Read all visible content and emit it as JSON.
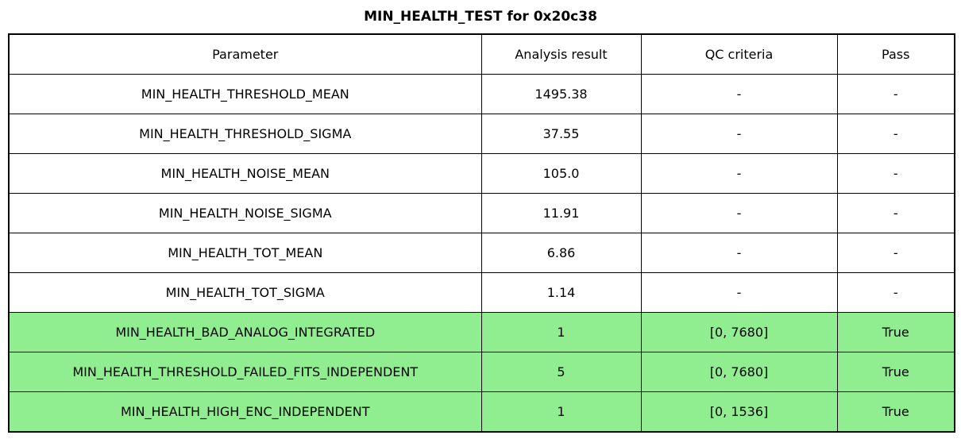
{
  "title": "MIN_HEALTH_TEST for 0x20c38",
  "table": {
    "headers": [
      "Parameter",
      "Analysis result",
      "QC criteria",
      "Pass"
    ],
    "rows": [
      {
        "parameter": "MIN_HEALTH_THRESHOLD_MEAN",
        "result": "1495.38",
        "qc": "-",
        "pass": "-",
        "highlight": false
      },
      {
        "parameter": "MIN_HEALTH_THRESHOLD_SIGMA",
        "result": "37.55",
        "qc": "-",
        "pass": "-",
        "highlight": false
      },
      {
        "parameter": "MIN_HEALTH_NOISE_MEAN",
        "result": "105.0",
        "qc": "-",
        "pass": "-",
        "highlight": false
      },
      {
        "parameter": "MIN_HEALTH_NOISE_SIGMA",
        "result": "11.91",
        "qc": "-",
        "pass": "-",
        "highlight": false
      },
      {
        "parameter": "MIN_HEALTH_TOT_MEAN",
        "result": "6.86",
        "qc": "-",
        "pass": "-",
        "highlight": false
      },
      {
        "parameter": "MIN_HEALTH_TOT_SIGMA",
        "result": "1.14",
        "qc": "-",
        "pass": "-",
        "highlight": false
      },
      {
        "parameter": "MIN_HEALTH_BAD_ANALOG_INTEGRATED",
        "result": "1",
        "qc": "[0, 7680]",
        "pass": "True",
        "highlight": true
      },
      {
        "parameter": "MIN_HEALTH_THRESHOLD_FAILED_FITS_INDEPENDENT",
        "result": "5",
        "qc": "[0, 7680]",
        "pass": "True",
        "highlight": true
      },
      {
        "parameter": "MIN_HEALTH_HIGH_ENC_INDEPENDENT",
        "result": "1",
        "qc": "[0, 1536]",
        "pass": "True",
        "highlight": true
      }
    ]
  },
  "colors": {
    "pass_green": "#90EE90",
    "border": "#000000",
    "background": "#ffffff",
    "text": "#000000"
  }
}
